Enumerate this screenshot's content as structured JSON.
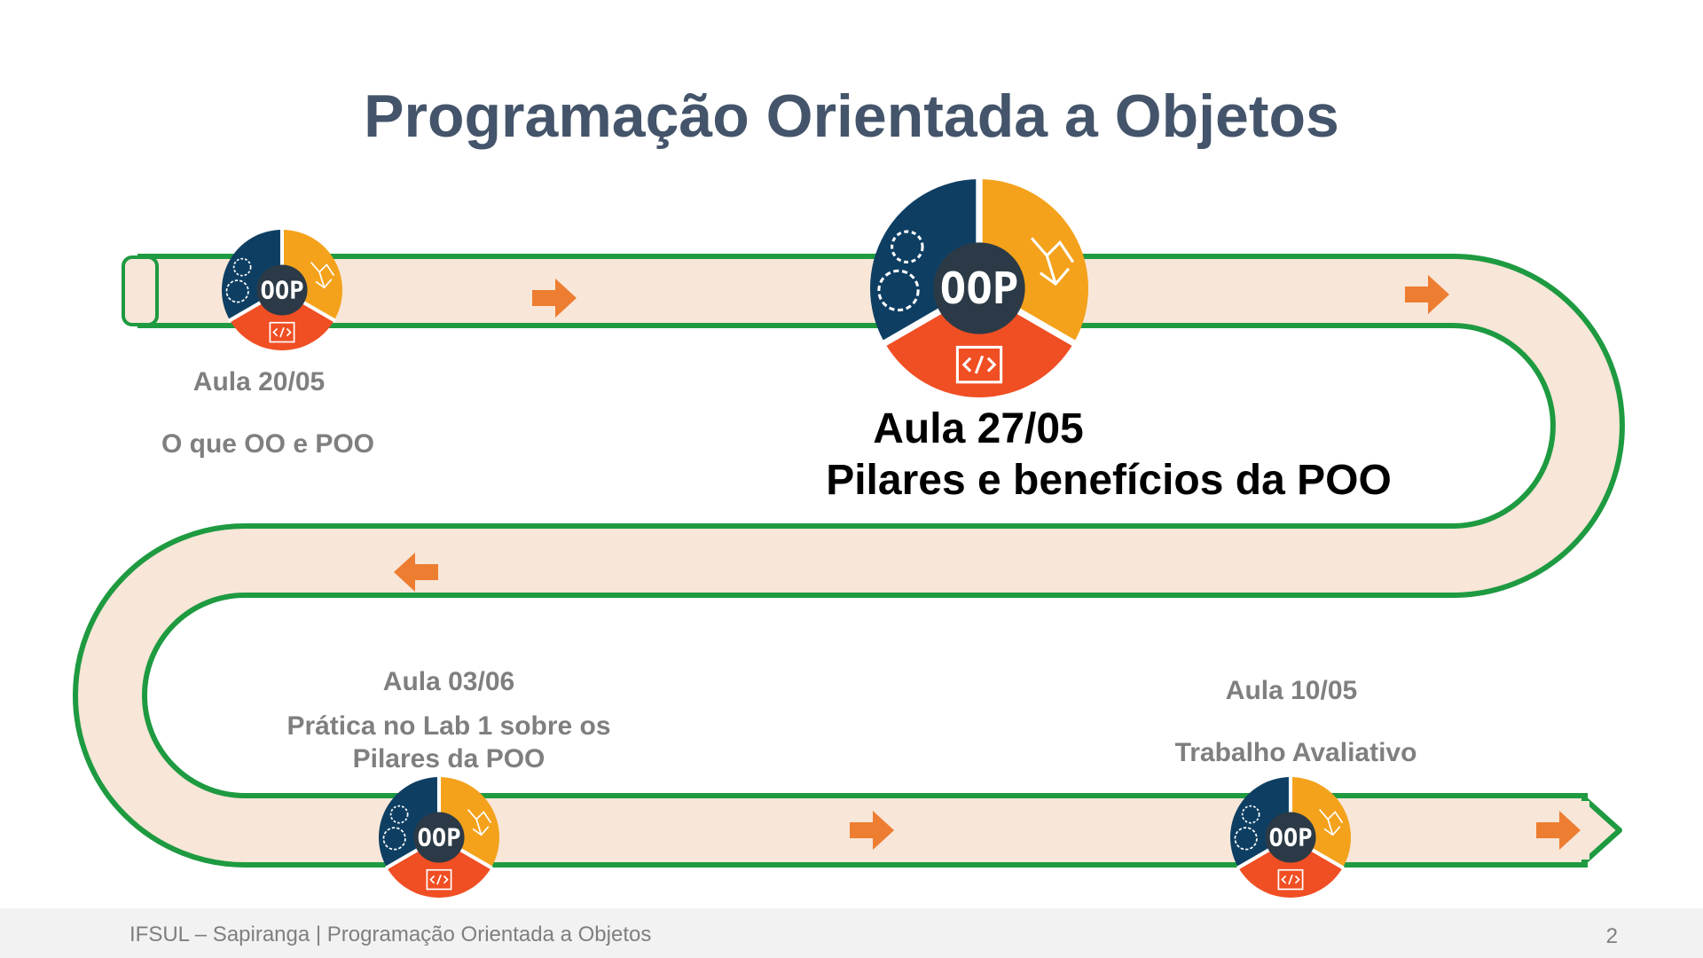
{
  "slide": {
    "title": "Programação Orientada a Objetos"
  },
  "timeline": {
    "badge_text": "OOP",
    "milestones": [
      {
        "date": "Aula 20/05",
        "topic": "O que OO e POO"
      },
      {
        "date": "Aula 27/05",
        "topic": "Pilares e benefícios da POO"
      },
      {
        "date": "Aula 03/06",
        "topic_line1": "Prática no Lab 1 sobre os",
        "topic_line2": "Pilares da POO"
      },
      {
        "date": "Aula 10/05",
        "topic": "Trabalho Avaliativo"
      }
    ]
  },
  "footer": {
    "text": "IFSUL – Sapiranga |  Programação Orientada a Objetos",
    "page_number": "2"
  },
  "colors": {
    "title": "#44546a",
    "road_fill": "#f8e6d8",
    "road_border": "#1e9a41",
    "arrow": "#ed7d31",
    "badge_navy": "#0e3f63",
    "badge_orange": "#f4a21c",
    "badge_red": "#f04e23",
    "badge_center": "#2b3a46"
  }
}
